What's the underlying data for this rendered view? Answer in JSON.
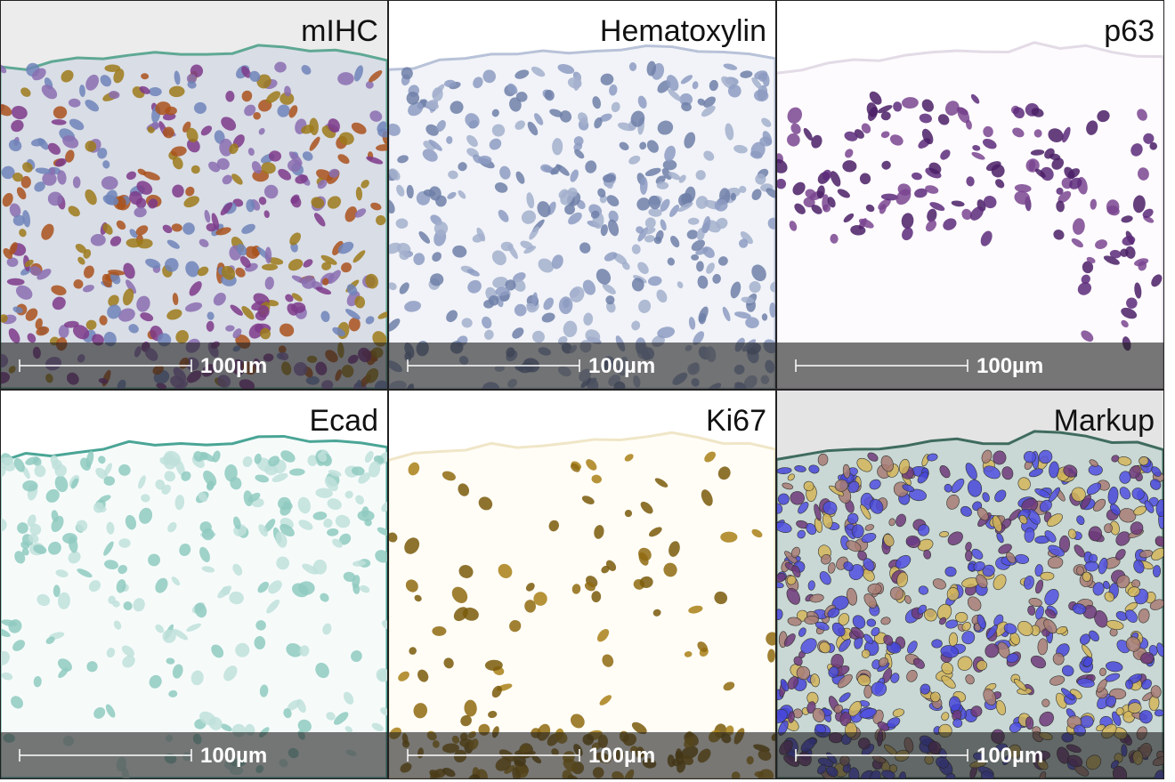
{
  "panels": [
    {
      "label": "mIHC",
      "scale_bar": "100µm"
    },
    {
      "label": "Hematoxylin",
      "scale_bar": "100µm"
    },
    {
      "label": "p63",
      "scale_bar": "100µm"
    },
    {
      "label": "Ecad",
      "scale_bar": "100µm"
    },
    {
      "label": "Ki67",
      "scale_bar": "100µm"
    },
    {
      "label": "Markup",
      "scale_bar": "100µm"
    }
  ]
}
